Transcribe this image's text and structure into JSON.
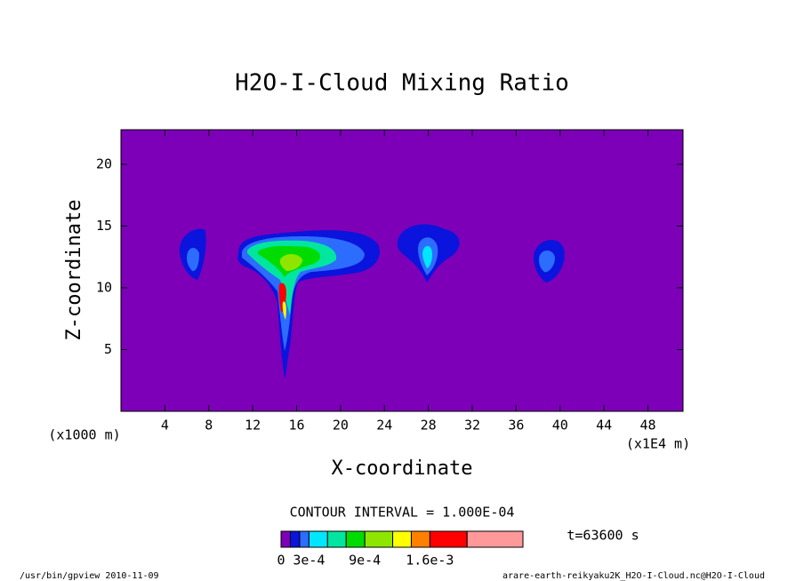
{
  "chart_data": {
    "type": "contour",
    "title": "H2O-I-Cloud Mixing Ratio",
    "xlabel": "X-coordinate",
    "ylabel": "Z-coordinate",
    "x_unit_left": "(x1000 m)",
    "x_unit_right": "(x1E4 m)",
    "xlim": [
      0,
      51.2
    ],
    "ylim": [
      0,
      22.8
    ],
    "xticks": [
      4,
      8,
      12,
      16,
      20,
      24,
      28,
      32,
      36,
      40,
      44,
      48
    ],
    "yticks": [
      5,
      10,
      15,
      20
    ],
    "contour_interval": "CONTOUR INTERVAL = 1.000E-04",
    "time": "t=63600 s",
    "colorbar": {
      "levels": [
        0,
        0.0001,
        0.0002,
        0.0003,
        0.0005,
        0.0007,
        0.0009,
        0.0012,
        0.0014,
        0.0016,
        0.002,
        0.0026
      ],
      "colors": [
        "#7d00b8",
        "#0a14dc",
        "#2c6cff",
        "#00e6ff",
        "#00e6a0",
        "#00dc00",
        "#8ee600",
        "#ffff00",
        "#ff8000",
        "#ff0000",
        "#ff9999"
      ],
      "ticks": [
        0,
        {
          "value": 0.0003,
          "label": "3e-4"
        },
        {
          "value": 0.0009,
          "label": "9e-4"
        },
        {
          "value": 0.0016,
          "label": "1.6e-3"
        }
      ]
    },
    "footer_left": "/usr/bin/gpview  2010-11-09",
    "footer_right": "arare-earth-reikyaku2K_H2O-I-Cloud.nc@H2O-I-Cloud"
  }
}
